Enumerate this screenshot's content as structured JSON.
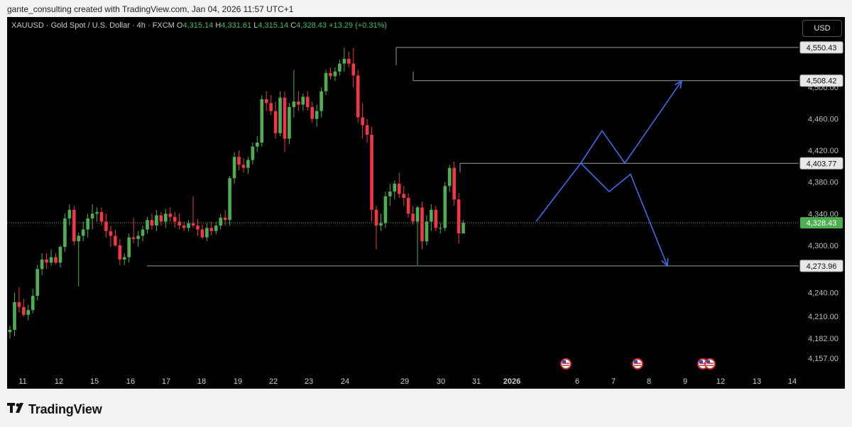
{
  "header": {
    "caption": "gante_consulting created with TradingView.com, Jan 04, 2026 11:57 UTC+1"
  },
  "symbol": {
    "title": "XAUUSD · Gold Spot / U.S. Dollar · 4h · FXCM",
    "o_label": "O",
    "o_value": "4,315.14",
    "h_label": "H",
    "h_value": "4,331.61",
    "l_label": "L",
    "l_value": "4,315.14",
    "c_label": "C",
    "c_value": "4,328.43",
    "change": "+13.29 (+0.31%)"
  },
  "currency_button": "USD",
  "footer": {
    "logo_text": "TradingView"
  },
  "colors": {
    "up": "#4caf50",
    "down": "#f23645",
    "projection": "#3d6bf0",
    "level_line": "#9a9a9a",
    "last_price_badge": "#4caf50",
    "last_price_line": "#4caf50"
  },
  "chart_data": {
    "type": "candlestick",
    "symbol": "XAUUSD",
    "timeframe": "4h",
    "x_tick_labels": [
      "11",
      "12",
      "15",
      "16",
      "17",
      "18",
      "19",
      "22",
      "23",
      "24",
      "29",
      "30",
      "31",
      "2026",
      "6",
      "7",
      "8",
      "9",
      "12",
      "13",
      "14"
    ],
    "y_tick_labels": [
      "4,157.00",
      "4,182.00",
      "4,210.00",
      "4,240.00",
      "4,300.00",
      "4,340.00",
      "4,380.00",
      "4,420.00",
      "4,460.00",
      "4,500.00"
    ],
    "y_ticks": [
      4157,
      4182,
      4210,
      4240,
      4300,
      4340,
      4380,
      4420,
      4460,
      4500
    ],
    "ylim": [
      4140,
      4580
    ],
    "levels": [
      {
        "label": "4,550.43",
        "value": 4550.43
      },
      {
        "label": "4,508.42",
        "value": 4508.42
      },
      {
        "label": "4,403.77",
        "value": 4403.77
      },
      {
        "label": "4,273.96",
        "value": 4273.96
      }
    ],
    "last_price": {
      "label": "4,328.43",
      "value": 4328.43
    },
    "candles": [
      {
        "o": 4190,
        "h": 4198,
        "l": 4182,
        "c": 4193
      },
      {
        "o": 4193,
        "h": 4240,
        "l": 4185,
        "c": 4228
      },
      {
        "o": 4228,
        "h": 4247,
        "l": 4215,
        "c": 4222
      },
      {
        "o": 4222,
        "h": 4232,
        "l": 4210,
        "c": 4212
      },
      {
        "o": 4212,
        "h": 4225,
        "l": 4205,
        "c": 4218
      },
      {
        "o": 4218,
        "h": 4245,
        "l": 4214,
        "c": 4236
      },
      {
        "o": 4236,
        "h": 4275,
        "l": 4230,
        "c": 4270
      },
      {
        "o": 4270,
        "h": 4290,
        "l": 4262,
        "c": 4282
      },
      {
        "o": 4282,
        "h": 4290,
        "l": 4270,
        "c": 4278
      },
      {
        "o": 4278,
        "h": 4295,
        "l": 4274,
        "c": 4285
      },
      {
        "o": 4285,
        "h": 4290,
        "l": 4276,
        "c": 4278
      },
      {
        "o": 4278,
        "h": 4300,
        "l": 4272,
        "c": 4298
      },
      {
        "o": 4298,
        "h": 4340,
        "l": 4292,
        "c": 4334
      },
      {
        "o": 4334,
        "h": 4352,
        "l": 4325,
        "c": 4345
      },
      {
        "o": 4345,
        "h": 4350,
        "l": 4300,
        "c": 4305
      },
      {
        "o": 4305,
        "h": 4316,
        "l": 4248,
        "c": 4312
      },
      {
        "o": 4312,
        "h": 4330,
        "l": 4305,
        "c": 4320
      },
      {
        "o": 4320,
        "h": 4340,
        "l": 4310,
        "c": 4334
      },
      {
        "o": 4334,
        "h": 4352,
        "l": 4320,
        "c": 4340
      },
      {
        "o": 4340,
        "h": 4348,
        "l": 4330,
        "c": 4342
      },
      {
        "o": 4342,
        "h": 4348,
        "l": 4325,
        "c": 4330
      },
      {
        "o": 4330,
        "h": 4340,
        "l": 4310,
        "c": 4318
      },
      {
        "o": 4318,
        "h": 4325,
        "l": 4298,
        "c": 4312
      },
      {
        "o": 4312,
        "h": 4320,
        "l": 4298,
        "c": 4300
      },
      {
        "o": 4300,
        "h": 4308,
        "l": 4275,
        "c": 4282
      },
      {
        "o": 4282,
        "h": 4290,
        "l": 4275,
        "c": 4285
      },
      {
        "o": 4285,
        "h": 4315,
        "l": 4278,
        "c": 4310
      },
      {
        "o": 4310,
        "h": 4335,
        "l": 4303,
        "c": 4308
      },
      {
        "o": 4308,
        "h": 4318,
        "l": 4298,
        "c": 4312
      },
      {
        "o": 4312,
        "h": 4325,
        "l": 4305,
        "c": 4320
      },
      {
        "o": 4320,
        "h": 4336,
        "l": 4315,
        "c": 4332
      },
      {
        "o": 4332,
        "h": 4340,
        "l": 4320,
        "c": 4325
      },
      {
        "o": 4325,
        "h": 4345,
        "l": 4318,
        "c": 4338
      },
      {
        "o": 4338,
        "h": 4342,
        "l": 4325,
        "c": 4330
      },
      {
        "o": 4330,
        "h": 4346,
        "l": 4322,
        "c": 4340
      },
      {
        "o": 4340,
        "h": 4348,
        "l": 4330,
        "c": 4336
      },
      {
        "o": 4336,
        "h": 4342,
        "l": 4322,
        "c": 4330
      },
      {
        "o": 4330,
        "h": 4340,
        "l": 4320,
        "c": 4325
      },
      {
        "o": 4325,
        "h": 4330,
        "l": 4318,
        "c": 4322
      },
      {
        "o": 4322,
        "h": 4332,
        "l": 4318,
        "c": 4328
      },
      {
        "o": 4328,
        "h": 4362,
        "l": 4322,
        "c": 4325
      },
      {
        "o": 4325,
        "h": 4333,
        "l": 4312,
        "c": 4320
      },
      {
        "o": 4320,
        "h": 4326,
        "l": 4308,
        "c": 4310
      },
      {
        "o": 4310,
        "h": 4328,
        "l": 4305,
        "c": 4322
      },
      {
        "o": 4322,
        "h": 4330,
        "l": 4312,
        "c": 4318
      },
      {
        "o": 4318,
        "h": 4330,
        "l": 4314,
        "c": 4325
      },
      {
        "o": 4325,
        "h": 4340,
        "l": 4320,
        "c": 4335
      },
      {
        "o": 4335,
        "h": 4345,
        "l": 4325,
        "c": 4332
      },
      {
        "o": 4332,
        "h": 4388,
        "l": 4325,
        "c": 4385
      },
      {
        "o": 4385,
        "h": 4418,
        "l": 4378,
        "c": 4412
      },
      {
        "o": 4412,
        "h": 4420,
        "l": 4395,
        "c": 4402
      },
      {
        "o": 4402,
        "h": 4410,
        "l": 4392,
        "c": 4398
      },
      {
        "o": 4398,
        "h": 4412,
        "l": 4390,
        "c": 4408
      },
      {
        "o": 4408,
        "h": 4430,
        "l": 4402,
        "c": 4425
      },
      {
        "o": 4425,
        "h": 4438,
        "l": 4418,
        "c": 4430
      },
      {
        "o": 4430,
        "h": 4490,
        "l": 4425,
        "c": 4485
      },
      {
        "o": 4485,
        "h": 4495,
        "l": 4470,
        "c": 4480
      },
      {
        "o": 4480,
        "h": 4490,
        "l": 4465,
        "c": 4470
      },
      {
        "o": 4470,
        "h": 4482,
        "l": 4435,
        "c": 4442
      },
      {
        "o": 4442,
        "h": 4495,
        "l": 4438,
        "c": 4487
      },
      {
        "o": 4487,
        "h": 4495,
        "l": 4418,
        "c": 4435
      },
      {
        "o": 4435,
        "h": 4480,
        "l": 4428,
        "c": 4475
      },
      {
        "o": 4475,
        "h": 4522,
        "l": 4462,
        "c": 4482
      },
      {
        "o": 4482,
        "h": 4495,
        "l": 4470,
        "c": 4478
      },
      {
        "o": 4478,
        "h": 4492,
        "l": 4470,
        "c": 4488
      },
      {
        "o": 4488,
        "h": 4495,
        "l": 4470,
        "c": 4475
      },
      {
        "o": 4475,
        "h": 4482,
        "l": 4455,
        "c": 4460
      },
      {
        "o": 4460,
        "h": 4478,
        "l": 4450,
        "c": 4470
      },
      {
        "o": 4470,
        "h": 4500,
        "l": 4462,
        "c": 4495
      },
      {
        "o": 4495,
        "h": 4522,
        "l": 4490,
        "c": 4518
      },
      {
        "o": 4518,
        "h": 4525,
        "l": 4510,
        "c": 4514
      },
      {
        "o": 4514,
        "h": 4525,
        "l": 4508,
        "c": 4520
      },
      {
        "o": 4520,
        "h": 4535,
        "l": 4515,
        "c": 4530
      },
      {
        "o": 4530,
        "h": 4550,
        "l": 4520,
        "c": 4536
      },
      {
        "o": 4536,
        "h": 4545,
        "l": 4525,
        "c": 4530
      },
      {
        "o": 4530,
        "h": 4550,
        "l": 4500,
        "c": 4515
      },
      {
        "o": 4515,
        "h": 4522,
        "l": 4455,
        "c": 4462
      },
      {
        "o": 4462,
        "h": 4480,
        "l": 4435,
        "c": 4452
      },
      {
        "o": 4452,
        "h": 4460,
        "l": 4430,
        "c": 4440
      },
      {
        "o": 4440,
        "h": 4450,
        "l": 4330,
        "c": 4345
      },
      {
        "o": 4345,
        "h": 4350,
        "l": 4295,
        "c": 4325
      },
      {
        "o": 4325,
        "h": 4340,
        "l": 4318,
        "c": 4328
      },
      {
        "o": 4328,
        "h": 4368,
        "l": 4322,
        "c": 4362
      },
      {
        "o": 4362,
        "h": 4378,
        "l": 4350,
        "c": 4368
      },
      {
        "o": 4368,
        "h": 4382,
        "l": 4358,
        "c": 4378
      },
      {
        "o": 4378,
        "h": 4392,
        "l": 4360,
        "c": 4365
      },
      {
        "o": 4365,
        "h": 4375,
        "l": 4350,
        "c": 4360
      },
      {
        "o": 4360,
        "h": 4366,
        "l": 4335,
        "c": 4340
      },
      {
        "o": 4340,
        "h": 4350,
        "l": 4326,
        "c": 4330
      },
      {
        "o": 4330,
        "h": 4350,
        "l": 4275,
        "c": 4348
      },
      {
        "o": 4348,
        "h": 4355,
        "l": 4295,
        "c": 4305
      },
      {
        "o": 4305,
        "h": 4338,
        "l": 4300,
        "c": 4330
      },
      {
        "o": 4330,
        "h": 4352,
        "l": 4318,
        "c": 4345
      },
      {
        "o": 4345,
        "h": 4350,
        "l": 4318,
        "c": 4322
      },
      {
        "o": 4322,
        "h": 4328,
        "l": 4315,
        "c": 4322
      },
      {
        "o": 4322,
        "h": 4380,
        "l": 4318,
        "c": 4375
      },
      {
        "o": 4375,
        "h": 4402,
        "l": 4368,
        "c": 4398
      },
      {
        "o": 4398,
        "h": 4406,
        "l": 4350,
        "c": 4358
      },
      {
        "o": 4358,
        "h": 4366,
        "l": 4302,
        "c": 4315
      },
      {
        "o": 4315,
        "h": 4331.61,
        "l": 4315.14,
        "c": 4328.43
      }
    ],
    "projections": [
      {
        "name": "bullish",
        "y": [
          4330,
          4404,
          4445,
          4404,
          4508
        ]
      },
      {
        "name": "bearish",
        "y": [
          4404,
          4368,
          4390,
          4273.96
        ]
      }
    ]
  }
}
